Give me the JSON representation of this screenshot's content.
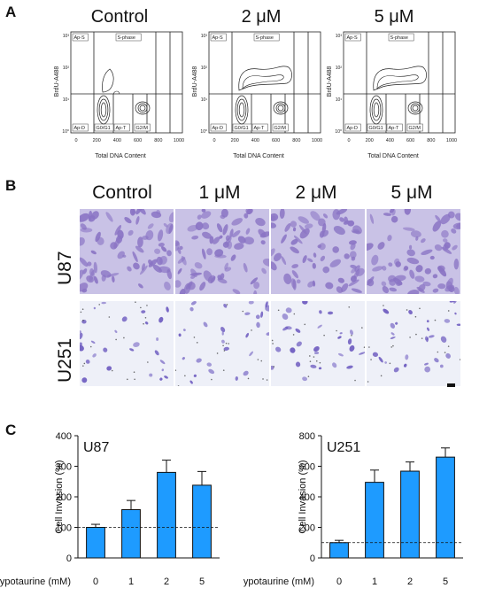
{
  "panels": {
    "a": "A",
    "b": "B",
    "c": "C"
  },
  "flow": {
    "titles": [
      "Control",
      "2 μM",
      "5 μM"
    ],
    "y_axis_label": "BrdU-A488",
    "x_axis_label": "Total DNA Content",
    "x_ticks": [
      "0",
      "200",
      "400",
      "600",
      "800",
      "1000"
    ],
    "y_ticks": [
      "10³",
      "10²",
      "10¹",
      "10⁰"
    ],
    "gates": {
      "top_left": "Ap-S",
      "top_mid": "S-phase",
      "bottom_left": "Ap-D",
      "bottom_g0g1": "G0/G1",
      "bottom_apt": "Ap-T",
      "bottom_g2m": "G2/M"
    },
    "s_phase_level": [
      "low",
      "high",
      "high"
    ]
  },
  "micro": {
    "columns": [
      "Control",
      "1 μM",
      "2 μM",
      "5 μM"
    ],
    "rows": [
      "U87",
      "U251"
    ],
    "u87_color": "#8a74c4",
    "u87_bg": "#c9c2e6",
    "u251_color": "#6e5cc0",
    "u251_bg": "#eef0f8"
  },
  "chart_data": [
    {
      "type": "bar",
      "title": "U87",
      "categories": [
        "0",
        "1",
        "2",
        "5"
      ],
      "values": [
        100,
        158,
        280,
        238
      ],
      "errors": [
        10,
        30,
        40,
        45
      ],
      "ylabel": "Cell Invasion (%)",
      "xlabel": "Hypotaurine (mM)",
      "ylim": [
        0,
        400
      ],
      "yticks": [
        0,
        100,
        200,
        300,
        400
      ],
      "reference_line": 100,
      "bar_color": "#1e9bff"
    },
    {
      "type": "bar",
      "title": "U251",
      "categories": [
        "0",
        "1",
        "2",
        "5"
      ],
      "values": [
        100,
        495,
        568,
        660
      ],
      "errors": [
        15,
        80,
        60,
        60
      ],
      "ylabel": "Cell Invasion (%)",
      "xlabel": "Hypotaurine (mM)",
      "ylim": [
        0,
        800
      ],
      "yticks": [
        0,
        200,
        400,
        600,
        800
      ],
      "reference_line": 100,
      "bar_color": "#1e9bff"
    }
  ]
}
